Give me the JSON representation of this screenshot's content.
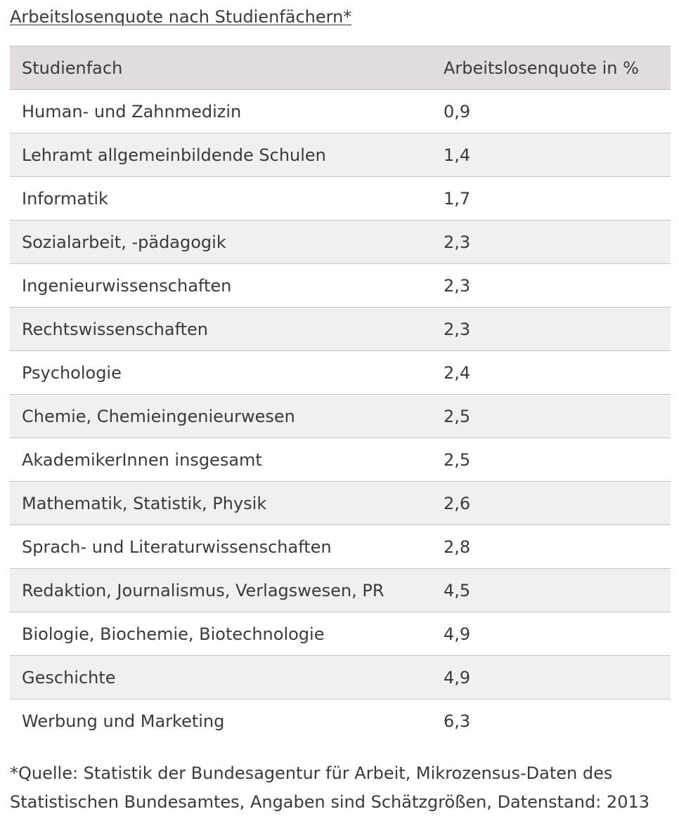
{
  "title": "Arbeitslosenquote nach Studienfächern*",
  "table": {
    "headers": [
      "Studienfach",
      "Arbeitslosenquote in %"
    ],
    "rows": [
      [
        "Human- und Zahnmedizin",
        "0,9"
      ],
      [
        "Lehramt allgemeinbildende Schulen",
        "1,4"
      ],
      [
        "Informatik",
        "1,7"
      ],
      [
        "Sozialarbeit, -pädagogik",
        "2,3"
      ],
      [
        "Ingenieurwissenschaften",
        "2,3"
      ],
      [
        "Rechtswissenschaften",
        "2,3"
      ],
      [
        "Psychologie",
        "2,4"
      ],
      [
        "Chemie, Chemieingenieurwesen",
        "2,5"
      ],
      [
        "AkademikerInnen insgesamt",
        "2,5"
      ],
      [
        "Mathematik, Statistik, Physik",
        "2,6"
      ],
      [
        "Sprach- und Literaturwissenschaften",
        "2,8"
      ],
      [
        "Redaktion, Journalismus, Verlagswesen, PR",
        "4,5"
      ],
      [
        "Biologie, Biochemie, Biotechnologie",
        "4,9"
      ],
      [
        "Geschichte",
        "4,9"
      ],
      [
        "Werbung und Marketing",
        "6,3"
      ]
    ]
  },
  "footnote": "*Quelle: Statistik der Bundesagentur für Arbeit, Mikrozensus-Daten des Statistischen Bundesamtes, Angaben sind Schätzgrößen, Datenstand: 2013",
  "colors": {
    "header_bg": "#e2dcdc",
    "stripe_bg": "#f0f0f0",
    "text": "#3a3a3a",
    "border": "#c8c4c4"
  }
}
